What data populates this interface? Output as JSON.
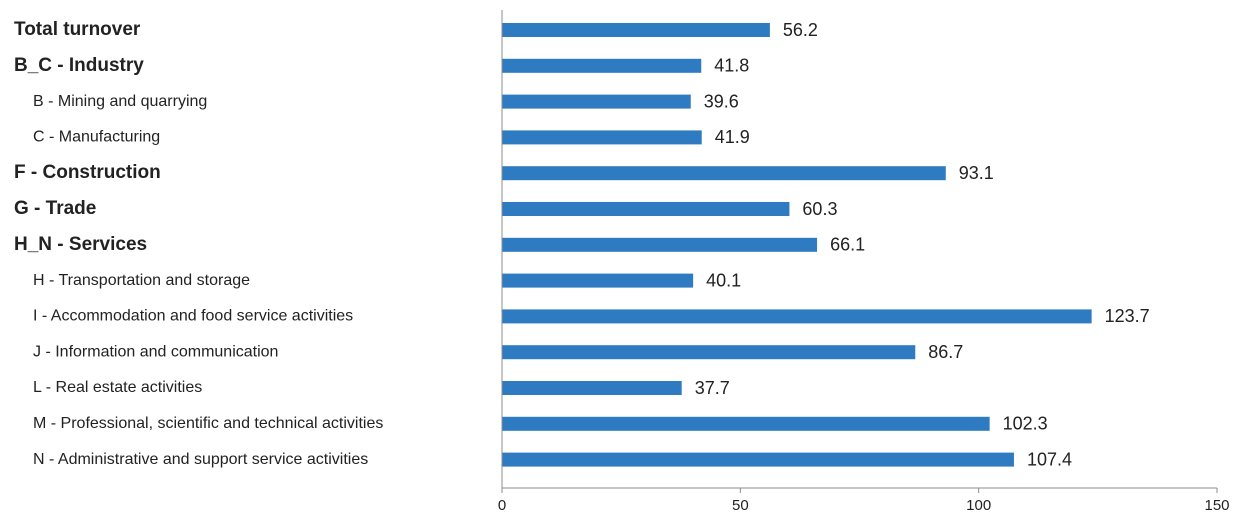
{
  "colors": {
    "bar": "#2E7BC1",
    "axis": "#8c8c8c",
    "text": "#222222",
    "background": "#ffffff"
  },
  "chart_data": {
    "type": "bar",
    "orientation": "horizontal",
    "title": "",
    "xlabel": "",
    "ylabel": "",
    "categories": [
      "Total turnover",
      "B_C - Industry",
      "B - Mining and quarrying",
      "C - Manufacturing",
      "F - Construction",
      "G - Trade",
      "H_N - Services",
      "H - Transportation and storage",
      "I - Accommodation and food service activities",
      "J - Information and communication",
      "L - Real estate activities",
      "M - Professional, scientific and technical activities",
      "N - Administrative and support service activities"
    ],
    "category_levels": [
      0,
      0,
      1,
      1,
      0,
      0,
      0,
      1,
      1,
      1,
      1,
      1,
      1
    ],
    "values": [
      56.2,
      41.8,
      39.6,
      41.9,
      93.1,
      60.3,
      66.1,
      40.1,
      123.7,
      86.7,
      37.7,
      102.3,
      107.4
    ],
    "value_labels": [
      "56.2",
      "41.8",
      "39.6",
      "41.9",
      "93.1",
      "60.3",
      "66.1",
      "40.1",
      "123.7",
      "86.7",
      "37.7",
      "102.3",
      "107.4"
    ],
    "xlim": [
      0,
      150
    ],
    "xticks": [
      0,
      50,
      100,
      150
    ],
    "xtick_labels": [
      "0",
      "50",
      "100",
      "150"
    ],
    "grid": false,
    "legend": "none"
  }
}
